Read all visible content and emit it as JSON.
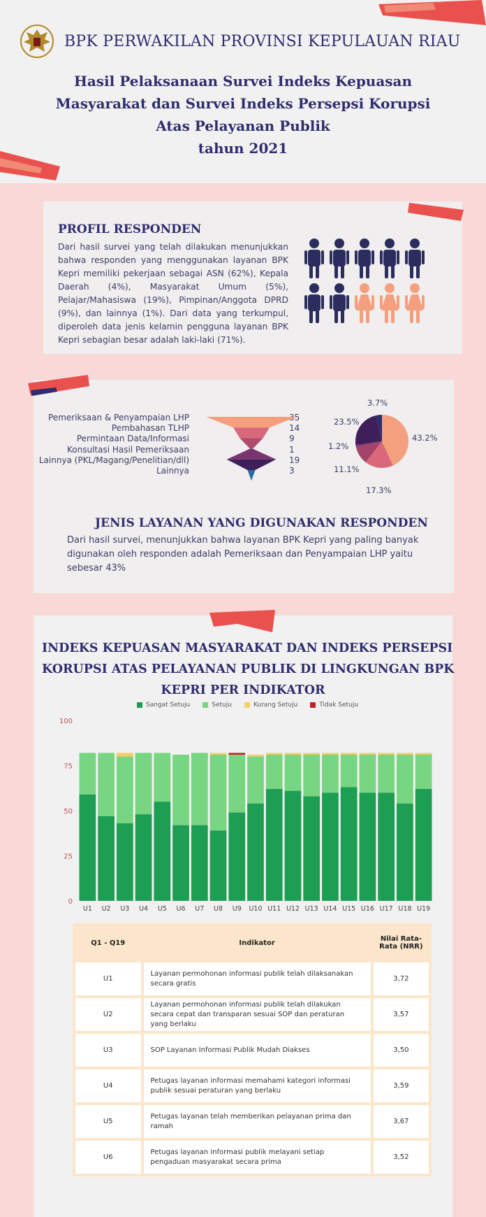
{
  "header": {
    "org_name": "BPK PERWAKILAN PROVINSI KEPULAUAN RIAU",
    "title_lines": [
      "Hasil Pelaksanaan Survei Indeks Kepuasan",
      "Masyarakat dan Survei Indeks Persepsi Korupsi",
      "Atas Pelayanan Publik",
      "tahun 2021"
    ]
  },
  "profil": {
    "title": "PROFIL RESPONDEN",
    "text": "Dari hasil survei yang telah dilakukan menunjukkan bahwa responden yang menggunakan layanan BPK Kepri memiliki pekerjaan sebagai ASN (62%), Kepala Daerah (4%), Masyarakat Umum (5%), Pelajar/Mahasiswa (19%), Pimpinan/Anggota DPRD (9%), dan lainnya (1%). Dari data yang terkumpul, diperoleh data jenis kelamin pengguna layanan BPK Kepri sebagian besar adalah laki-laki (71%).",
    "male_color": "#2b2d5e",
    "female_color": "#f4a07e"
  },
  "jenis": {
    "title": "JENIS LAYANAN YANG DIGUNAKAN RESPONDEN",
    "text": "Dari hasil survei, menunjukkan bahwa layanan BPK Kepri yang paling banyak digunakan oleh responden adalah Pemeriksaan dan Penyampaian LHP yaitu sebesar 43%"
  },
  "index_section": {
    "title_lines": [
      "INDEKS KEPUASAN MASYARAKAT DAN INDEKS PERSEPSI",
      "KORUPSI ATAS PELAYANAN PUBLIK DI LINGKUNGAN BPK",
      "KEPRI PER INDIKATOR"
    ]
  },
  "chart_data": [
    {
      "type": "funnel",
      "categories": [
        "Pemeriksaan & Penyampaian LHP",
        "Pembahasan TLHP",
        "Permintaan Data/Informasi",
        "Konsultasi Hasil Pemeriksaan",
        "Lainnya (PKL/Magang/Penelitian/dll)",
        "Lainnya"
      ],
      "values": [
        35,
        14,
        9,
        1,
        19,
        3
      ],
      "colors": [
        "#f4a07e",
        "#d9697a",
        "#b04d6e",
        "#7a3570",
        "#3e1f5a",
        "#2b6c9a"
      ]
    },
    {
      "type": "pie",
      "labels": [
        "43.2%",
        "17.3%",
        "11.1%",
        "1.2%",
        "23.5%",
        "3.7%"
      ],
      "values": [
        43.2,
        17.3,
        11.1,
        1.2,
        23.5,
        3.7
      ],
      "colors": [
        "#f4a07e",
        "#d9697a",
        "#a34369",
        "#7a3570",
        "#3e1f5a",
        "#2b2d6e"
      ]
    },
    {
      "type": "bar",
      "stacked": true,
      "categories": [
        "U1",
        "U2",
        "U3",
        "U4",
        "U5",
        "U6",
        "U7",
        "U8",
        "U9",
        "U10",
        "U11",
        "U12",
        "U13",
        "U14",
        "U15",
        "U16",
        "U17",
        "U18",
        "U19"
      ],
      "series": [
        {
          "name": "Sangat Setuju",
          "color": "#1c9e53",
          "values": [
            59,
            47,
            43,
            48,
            55,
            42,
            42,
            39,
            49,
            54,
            62,
            61,
            58,
            60,
            63,
            60,
            60,
            54,
            62
          ]
        },
        {
          "name": "Setuju",
          "color": "#78d581",
          "values": [
            23,
            35,
            37,
            34,
            27,
            39,
            40,
            42,
            32,
            26,
            19,
            20,
            23,
            21,
            18,
            21,
            21,
            27,
            19
          ]
        },
        {
          "name": "Kurang Setuju",
          "color": "#f5cd64",
          "values": [
            0,
            0,
            2,
            0,
            0,
            0,
            0,
            1,
            0,
            1,
            1,
            1,
            1,
            1,
            1,
            1,
            1,
            1,
            1
          ]
        },
        {
          "name": "Tidak Setuju",
          "color": "#c81e2a",
          "values": [
            0,
            0,
            0,
            0,
            0,
            0,
            0,
            0,
            1,
            0,
            0,
            0,
            0,
            0,
            0,
            0,
            0,
            0,
            0
          ]
        }
      ],
      "ylim": [
        0,
        100
      ],
      "yticks": [
        0,
        25,
        50,
        75,
        100
      ],
      "legend": "top"
    }
  ],
  "table": {
    "headers": [
      "Q1 - Q19",
      "Indikator",
      "Nilai Rata-Rata (NRR)"
    ],
    "rows": [
      {
        "code": "U1",
        "indikator": "Layanan permohonan informasi publik telah dilaksanakan secara gratis",
        "nrr": "3,72"
      },
      {
        "code": "U2",
        "indikator": "Layanan permohonan informasi publik telah dilakukan secara cepat dan transparan sesuai SOP dan peraturan yang berlaku",
        "nrr": "3,57"
      },
      {
        "code": "U3",
        "indikator": "SOP Layanan Informasi Publik Mudah Diakses",
        "nrr": "3,50"
      },
      {
        "code": "U4",
        "indikator": "Petugas layanan informasi memahami kategori informasi publik sesuai peraturan yang berlaku",
        "nrr": "3,59"
      },
      {
        "code": "U5",
        "indikator": "Petugas layanan telah memberikan pelayanan prima dan ramah",
        "nrr": "3,67"
      },
      {
        "code": "U6",
        "indikator": "Petugas layanan informasi publik melayani setiap pengaduan masyarakat secara prima",
        "nrr": "3,52"
      }
    ]
  }
}
